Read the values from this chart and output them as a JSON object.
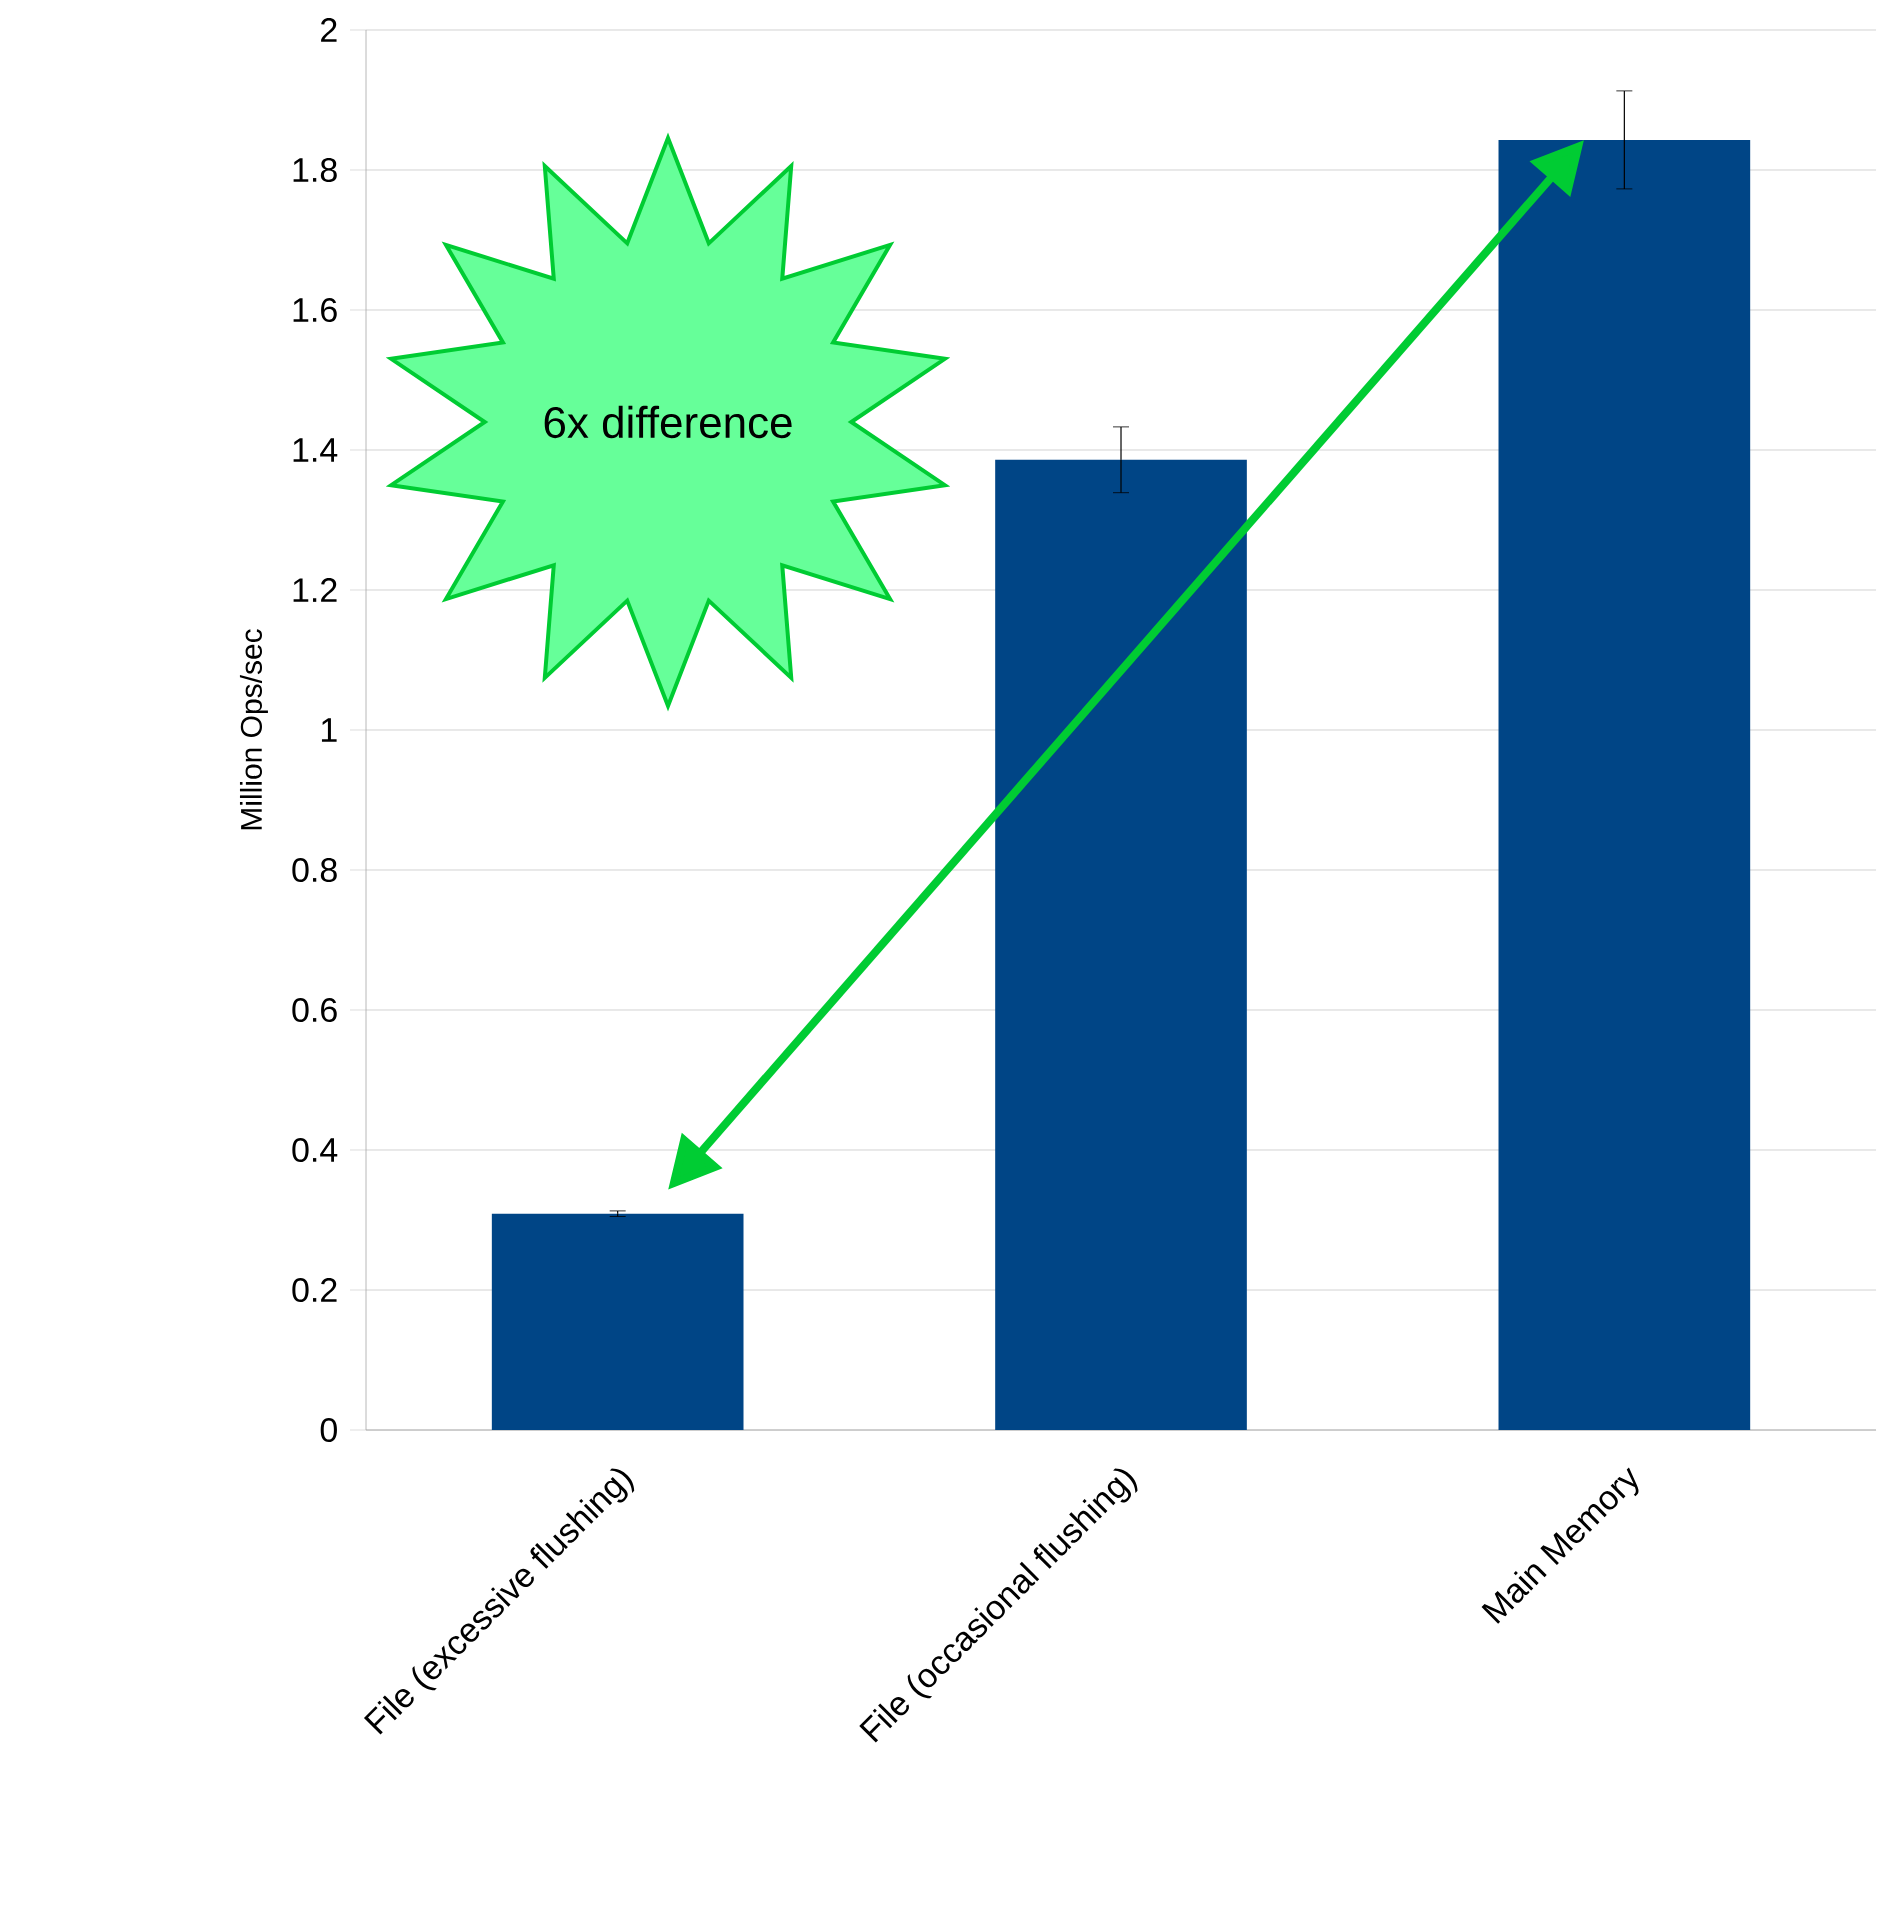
{
  "chart_data": {
    "type": "bar",
    "ylabel": "Million Ops/sec",
    "categories": [
      "File (excessive flushing)",
      "File (occasional flushing)",
      "Main Memory"
    ],
    "values": [
      0.309,
      1.386,
      1.843
    ],
    "errors": [
      0.004,
      0.047,
      0.07
    ],
    "color": "#004586",
    "ylim": [
      0,
      2
    ],
    "yticks": [
      0,
      0.2,
      0.4,
      0.6,
      0.8,
      1,
      1.2,
      1.4,
      1.6,
      1.8,
      2
    ],
    "grid": "y",
    "annotations": [
      "6x difference"
    ]
  }
}
